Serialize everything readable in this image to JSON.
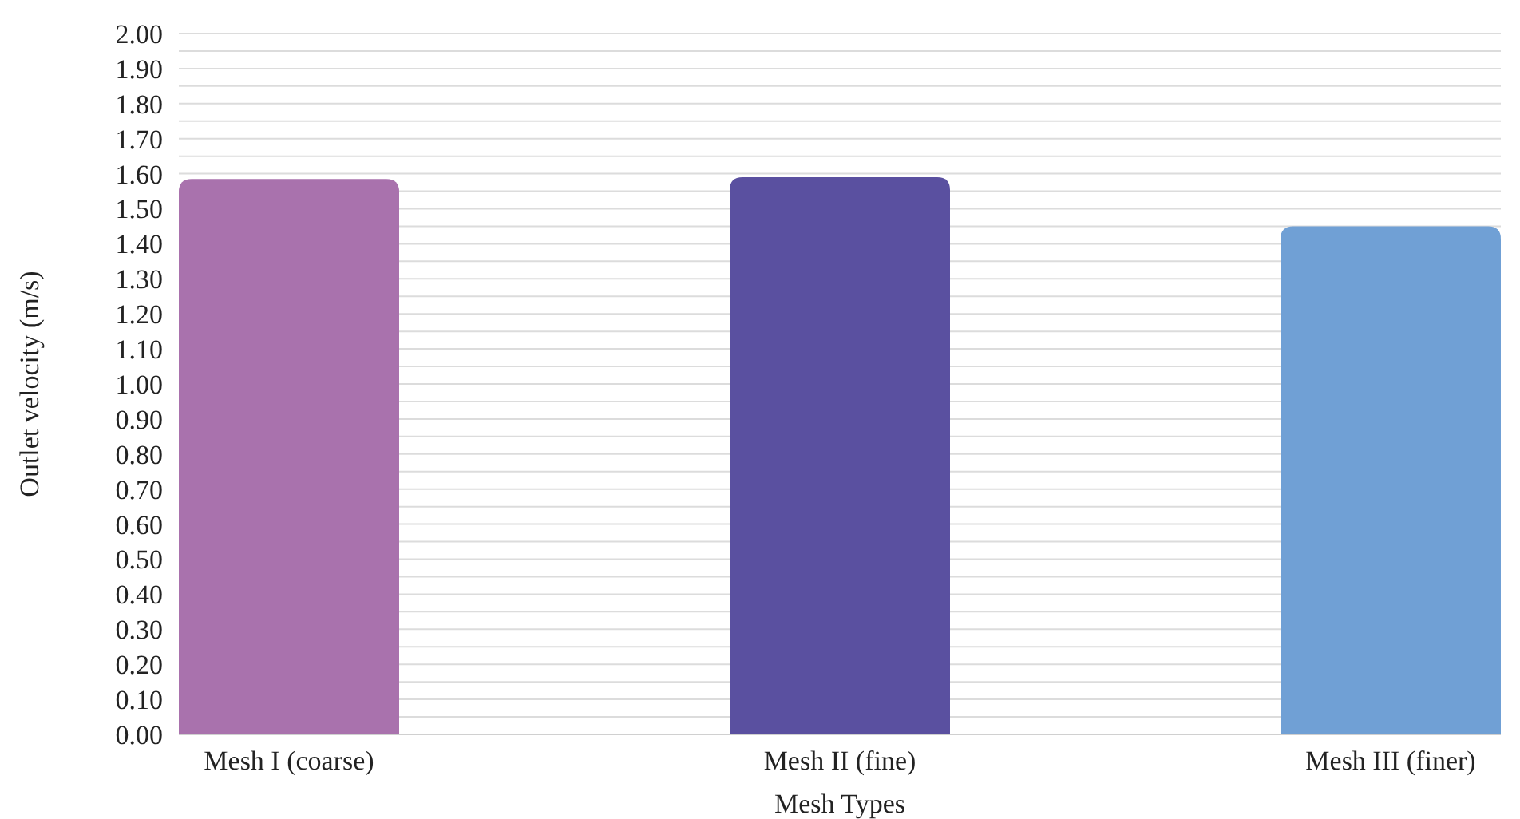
{
  "chart_data": {
    "type": "bar",
    "xlabel": "Mesh Types",
    "ylabel": "Outlet velocity (m/s)",
    "categories": [
      "Mesh I (coarse)",
      "Mesh II (fine)",
      "Mesh III (finer)"
    ],
    "values": [
      1.585,
      1.59,
      1.45
    ],
    "colors": [
      "#a972ad",
      "#5a50a0",
      "#70a0d5"
    ],
    "ylim": [
      0,
      2
    ],
    "yticks": [
      {
        "value": 0,
        "label": "0.00"
      },
      {
        "value": 0.05,
        "label": null
      },
      {
        "value": 0.1,
        "label": "0.10"
      },
      {
        "value": 0.15,
        "label": null
      },
      {
        "value": 0.2,
        "label": "0.20"
      },
      {
        "value": 0.25,
        "label": null
      },
      {
        "value": 0.3,
        "label": "0.30"
      },
      {
        "value": 0.35,
        "label": null
      },
      {
        "value": 0.4,
        "label": "0.40"
      },
      {
        "value": 0.45,
        "label": null
      },
      {
        "value": 0.5,
        "label": "0.50"
      },
      {
        "value": 0.55,
        "label": null
      },
      {
        "value": 0.6,
        "label": "0.60"
      },
      {
        "value": 0.65,
        "label": null
      },
      {
        "value": 0.7,
        "label": "0.70"
      },
      {
        "value": 0.75,
        "label": null
      },
      {
        "value": 0.8,
        "label": "0.80"
      },
      {
        "value": 0.85,
        "label": null
      },
      {
        "value": 0.9,
        "label": "0.90"
      },
      {
        "value": 0.95,
        "label": null
      },
      {
        "value": 1,
        "label": "1.00"
      },
      {
        "value": 1.05,
        "label": null
      },
      {
        "value": 1.1,
        "label": "1.10"
      },
      {
        "value": 1.15,
        "label": null
      },
      {
        "value": 1.2,
        "label": "1.20"
      },
      {
        "value": 1.25,
        "label": null
      },
      {
        "value": 1.3,
        "label": "1.30"
      },
      {
        "value": 1.35,
        "label": null
      },
      {
        "value": 1.4,
        "label": "1.40"
      },
      {
        "value": 1.45,
        "label": null
      },
      {
        "value": 1.5,
        "label": "1.50"
      },
      {
        "value": 1.55,
        "label": null
      },
      {
        "value": 1.6,
        "label": "1.60"
      },
      {
        "value": 1.65,
        "label": null
      },
      {
        "value": 1.7,
        "label": "1.70"
      },
      {
        "value": 1.75,
        "label": null
      },
      {
        "value": 1.8,
        "label": "1.80"
      },
      {
        "value": 1.85,
        "label": null
      },
      {
        "value": 1.9,
        "label": "1.90"
      },
      {
        "value": 1.95,
        "label": null
      },
      {
        "value": 2,
        "label": "2.00"
      }
    ],
    "grid": "y"
  }
}
